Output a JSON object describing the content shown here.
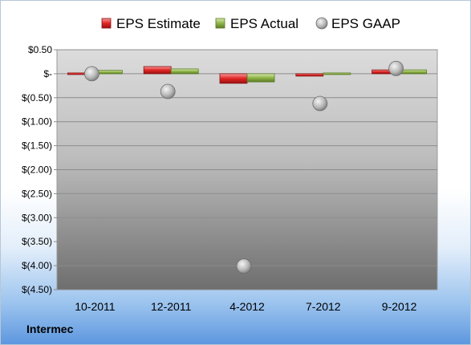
{
  "company": "Intermec",
  "colors": {
    "estimate": "#e02424",
    "actual": "#8fb548",
    "gaap": "#c8c8c8"
  },
  "chart_data": {
    "type": "bar",
    "categories": [
      "10-2011",
      "12-2011",
      "4-2012",
      "7-2012",
      "9-2012"
    ],
    "series": [
      {
        "name": "EPS Estimate",
        "type": "bar",
        "values": [
          0.0,
          0.15,
          -0.2,
          -0.05,
          0.08
        ]
      },
      {
        "name": "EPS Actual",
        "type": "bar",
        "values": [
          0.07,
          0.1,
          -0.17,
          -0.01,
          0.08
        ]
      },
      {
        "name": "EPS GAAP",
        "type": "scatter",
        "values": [
          0.0,
          -0.37,
          -4.01,
          -0.62,
          0.11
        ]
      }
    ],
    "ylim": [
      -4.5,
      0.5
    ],
    "yticks": [
      0.5,
      0,
      -0.5,
      -1.0,
      -1.5,
      -2.0,
      -2.5,
      -3.0,
      -3.5,
      -4.0,
      -4.5
    ],
    "ytick_labels": [
      "$0.50",
      "$-",
      "$(0.50)",
      "$(1.00)",
      "$(1.50)",
      "$(2.00)",
      "$(2.50)",
      "$(3.00)",
      "$(3.50)",
      "$(4.00)",
      "$(4.50)"
    ],
    "grid": true,
    "legend_position": "top"
  }
}
